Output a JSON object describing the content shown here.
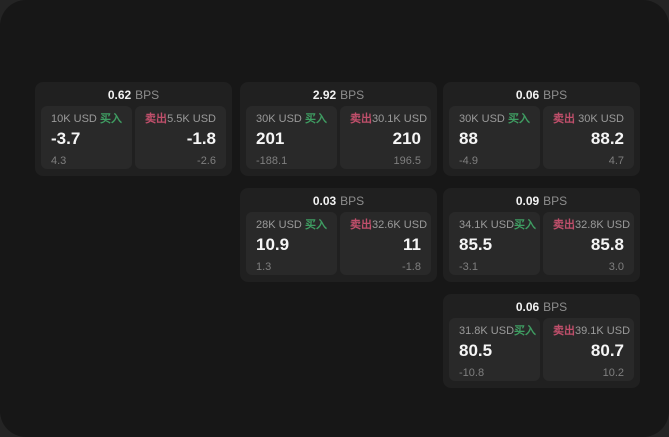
{
  "colors": {
    "buy": "#3f9d62",
    "sell": "#c04f6b"
  },
  "labels": {
    "unit": "BPS",
    "buy_side": "买入",
    "sell_side": "卖出"
  },
  "cards": [
    {
      "bps_value": "0.62",
      "bps_unit": "BPS",
      "buy": {
        "amount": "10K USD",
        "side": "买入",
        "price": "-3.7",
        "delta": "4.3"
      },
      "sell": {
        "amount": "5.5K USD",
        "side": "卖出",
        "price": "-1.8",
        "delta": "-2.6"
      }
    },
    {
      "bps_value": "2.92",
      "bps_unit": "BPS",
      "buy": {
        "amount": "30K USD",
        "side": "买入",
        "price": "201",
        "delta": "-188.1"
      },
      "sell": {
        "amount": "30.1K USD",
        "side": "卖出",
        "price": "210",
        "delta": "196.5"
      }
    },
    {
      "bps_value": "0.06",
      "bps_unit": "BPS",
      "buy": {
        "amount": "30K USD",
        "side": "买入",
        "price": "88",
        "delta": "-4.9"
      },
      "sell": {
        "amount": "30K USD",
        "side": "卖出",
        "price": "88.2",
        "delta": "4.7"
      }
    },
    {
      "bps_value": "0.03",
      "bps_unit": "BPS",
      "buy": {
        "amount": "28K USD",
        "side": "买入",
        "price": "10.9",
        "delta": "1.3"
      },
      "sell": {
        "amount": "32.6K USD",
        "side": "卖出",
        "price": "11",
        "delta": "-1.8"
      }
    },
    {
      "bps_value": "0.09",
      "bps_unit": "BPS",
      "buy": {
        "amount": "34.1K USD",
        "side": "买入",
        "price": "85.5",
        "delta": "-3.1"
      },
      "sell": {
        "amount": "32.8K USD",
        "side": "卖出",
        "price": "85.8",
        "delta": "3.0"
      }
    },
    {
      "bps_value": "0.06",
      "bps_unit": "BPS",
      "buy": {
        "amount": "31.8K USD",
        "side": "买入",
        "price": "80.5",
        "delta": "-10.8"
      },
      "sell": {
        "amount": "39.1K USD",
        "side": "卖出",
        "price": "80.7",
        "delta": "10.2"
      }
    }
  ]
}
